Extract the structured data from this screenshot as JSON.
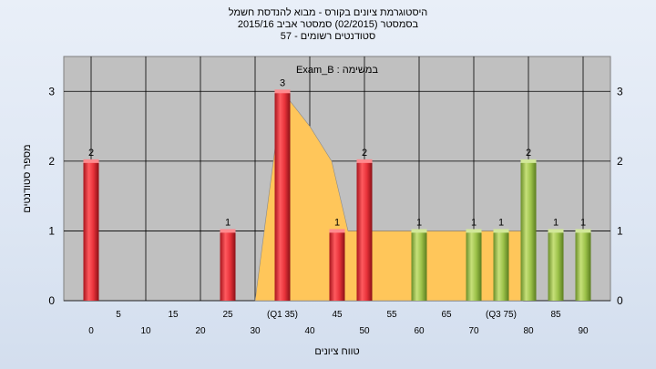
{
  "chart_data": {
    "type": "bar",
    "title_lines": [
      "היסטוגרמת ציונים בקורס - מבוא להנדסת חשמל",
      "בסמסטר  (02/2015)  סמסטר אביב 2015/16",
      "סטודנטים רשומים - 57"
    ],
    "xlabel": "טווח ציונים",
    "ylabel": "מספר סטודנטים",
    "legend_text": "Exam_B : במשימה",
    "legend_placement": "top-center",
    "ylim": [
      0,
      3.5
    ],
    "yticks": [
      "0",
      "1",
      "2",
      "3"
    ],
    "xticks_lower": [
      "0",
      "10",
      "20",
      "30",
      "40",
      "50",
      "60",
      "70",
      "80",
      "90"
    ],
    "xticks_upper": [
      "5",
      "15",
      "25",
      "(Q1 35)",
      "45",
      "55",
      "65",
      "(Q3 75)",
      "85"
    ],
    "bars": [
      {
        "x": 0,
        "value": 2,
        "label": "2",
        "color": "red"
      },
      {
        "x": 25,
        "value": 1,
        "label": "1",
        "color": "red"
      },
      {
        "x": 35,
        "value": 3,
        "label": "3",
        "color": "red"
      },
      {
        "x": 45,
        "value": 1,
        "label": "1",
        "color": "red"
      },
      {
        "x": 50,
        "value": 2,
        "label": "2",
        "color": "red"
      },
      {
        "x": 60,
        "value": 1,
        "label": "1",
        "color": "green"
      },
      {
        "x": 70,
        "value": 1,
        "label": "1",
        "color": "green"
      },
      {
        "x": 75,
        "value": 1,
        "label": "1",
        "color": "green"
      },
      {
        "x": 80,
        "value": 2,
        "label": "2",
        "color": "green"
      },
      {
        "x": 85,
        "value": 1,
        "label": "1",
        "color": "green"
      },
      {
        "x": 90,
        "value": 1,
        "label": "1",
        "color": "green"
      }
    ],
    "area_points": [
      {
        "x": 30,
        "y": 0
      },
      {
        "x": 35,
        "y": 3
      },
      {
        "x": 40,
        "y": 2.5
      },
      {
        "x": 44,
        "y": 2
      },
      {
        "x": 47,
        "y": 1
      },
      {
        "x": 79,
        "y": 1
      },
      {
        "x": 79,
        "y": 0
      }
    ],
    "colors": {
      "plot_bg": "#c0c0c0",
      "grid": "#000000",
      "area_fill": "#ffc65a",
      "red_bar": "#e8323a",
      "green_bar": "#9cc24a"
    },
    "grid": true
  }
}
